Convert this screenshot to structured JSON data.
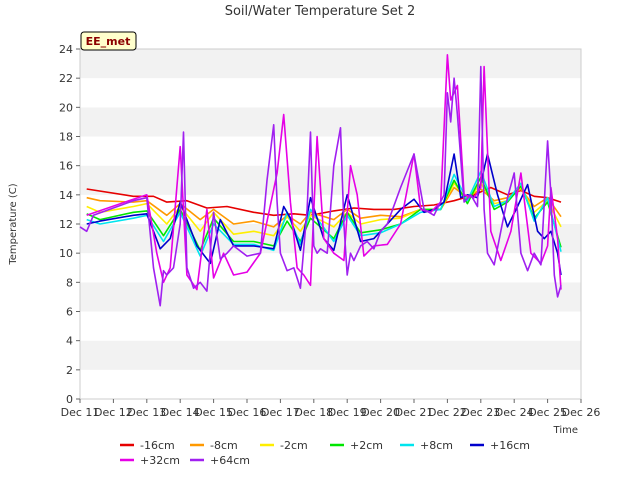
{
  "chart_data": {
    "type": "line",
    "title": "Soil/Water Temperature Set 2",
    "xlabel": "Time",
    "ylabel": "Temperature (C)",
    "badge": "EE_met",
    "x_ticks": [
      "Dec 11",
      "Dec 12",
      "Dec 13",
      "Dec 14",
      "Dec 15",
      "Dec 16",
      "Dec 17",
      "Dec 18",
      "Dec 19",
      "Dec 20",
      "Dec 21",
      "Dec 22",
      "Dec 23",
      "Dec 24",
      "Dec 25",
      "Dec 26"
    ],
    "xlim": [
      11,
      26
    ],
    "ylim": [
      0,
      24
    ],
    "y_ticks": [
      0,
      2,
      4,
      6,
      8,
      10,
      12,
      14,
      16,
      18,
      20,
      22,
      24
    ],
    "grid": "horizontal bands",
    "legend_position": "bottom",
    "series": [
      {
        "name": "-16cm",
        "color": "#e60000",
        "x": [
          11.2,
          12.6,
          13.2,
          13.6,
          14.2,
          14.8,
          15.4,
          16.2,
          16.8,
          17.4,
          17.9,
          18.6,
          19.2,
          19.8,
          20.4,
          21.0,
          21.6,
          22.2,
          22.8,
          23.3,
          23.8,
          24.2,
          24.6,
          25.0,
          25.4
        ],
        "y": [
          14.4,
          13.9,
          13.9,
          13.5,
          13.6,
          13.1,
          13.2,
          12.8,
          12.6,
          12.7,
          12.6,
          12.9,
          13.1,
          13.0,
          13.0,
          13.2,
          13.3,
          13.6,
          14.0,
          14.5,
          14.0,
          14.3,
          13.9,
          13.8,
          13.5
        ]
      },
      {
        "name": "-8cm",
        "color": "#ff9900",
        "x": [
          11.2,
          11.6,
          12.6,
          13.0,
          13.6,
          14.0,
          14.6,
          15.0,
          15.6,
          16.2,
          16.8,
          17.2,
          17.6,
          17.9,
          18.6,
          19.0,
          19.4,
          20.0,
          20.6,
          21.2,
          21.8,
          22.2,
          22.6,
          23.0,
          23.4,
          23.8,
          24.2,
          24.6,
          25.0,
          25.4
        ],
        "y": [
          13.8,
          13.6,
          13.5,
          13.6,
          12.6,
          13.4,
          12.3,
          13.0,
          12.0,
          12.2,
          11.8,
          12.6,
          12.0,
          12.8,
          12.3,
          13.0,
          12.4,
          12.6,
          12.5,
          13.0,
          13.0,
          14.5,
          13.8,
          14.4,
          13.6,
          13.8,
          14.4,
          13.2,
          13.8,
          12.5
        ]
      },
      {
        "name": "-2cm",
        "color": "#ffee00",
        "x": [
          11.2,
          11.6,
          12.6,
          13.0,
          13.6,
          14.0,
          14.6,
          15.0,
          15.6,
          16.2,
          16.8,
          17.2,
          17.6,
          17.9,
          18.6,
          19.0,
          19.4,
          20.0,
          20.6,
          21.2,
          21.8,
          22.2,
          22.6,
          23.0,
          23.4,
          23.8,
          24.2,
          24.6,
          25.0,
          25.4
        ],
        "y": [
          13.2,
          12.8,
          13.2,
          13.4,
          12.0,
          13.2,
          11.5,
          12.8,
          11.3,
          11.5,
          11.2,
          12.5,
          11.5,
          12.6,
          11.8,
          12.8,
          12.0,
          12.3,
          12.4,
          13.0,
          13.0,
          14.8,
          13.6,
          14.8,
          13.4,
          13.6,
          14.5,
          12.8,
          13.6,
          11.8
        ]
      },
      {
        "name": "+2cm",
        "color": "#00e600",
        "x": [
          11.2,
          11.6,
          12.6,
          13.0,
          13.5,
          14.0,
          14.6,
          15.0,
          15.6,
          16.2,
          16.8,
          17.2,
          17.6,
          17.9,
          18.6,
          19.0,
          19.4,
          20.0,
          20.6,
          21.2,
          21.8,
          22.2,
          22.6,
          23.0,
          23.4,
          23.8,
          24.2,
          24.6,
          25.0,
          25.4
        ],
        "y": [
          12.7,
          12.3,
          12.8,
          12.9,
          11.2,
          13.0,
          10.2,
          12.4,
          10.8,
          10.8,
          10.5,
          12.2,
          10.8,
          12.4,
          11.0,
          12.8,
          11.4,
          11.6,
          12.0,
          13.0,
          13.0,
          15.0,
          13.4,
          15.2,
          13.0,
          13.5,
          14.6,
          12.4,
          13.5,
          10.4
        ]
      },
      {
        "name": "+8cm",
        "color": "#00e5ee",
        "x": [
          11.2,
          11.6,
          12.6,
          13.0,
          13.5,
          14.0,
          14.6,
          15.0,
          15.6,
          16.2,
          16.8,
          17.2,
          17.6,
          17.9,
          18.6,
          19.0,
          19.4,
          20.0,
          20.6,
          21.2,
          21.8,
          22.2,
          22.6,
          23.0,
          23.4,
          23.8,
          24.2,
          24.6,
          25.0,
          25.4
        ],
        "y": [
          12.3,
          12.0,
          12.4,
          12.6,
          10.8,
          12.8,
          9.8,
          12.0,
          10.6,
          10.6,
          10.2,
          12.8,
          10.6,
          13.0,
          10.8,
          12.6,
          11.2,
          11.4,
          12.0,
          12.8,
          13.0,
          15.4,
          13.6,
          15.6,
          13.2,
          13.6,
          14.8,
          12.2,
          13.8,
          10.1
        ]
      },
      {
        "name": "+16cm",
        "color": "#0000cc",
        "x": [
          11.2,
          11.6,
          12.6,
          13.0,
          13.4,
          13.7,
          14.0,
          14.5,
          14.9,
          15.2,
          15.6,
          16.2,
          16.8,
          17.1,
          17.3,
          17.6,
          17.9,
          18.3,
          18.6,
          19.0,
          19.4,
          19.8,
          20.2,
          20.6,
          21.0,
          21.3,
          21.6,
          21.9,
          22.2,
          22.4,
          22.6,
          22.9,
          23.2,
          23.5,
          23.8,
          24.1,
          24.4,
          24.7,
          24.9,
          25.1,
          25.3,
          25.4
        ],
        "y": [
          12.0,
          12.2,
          12.6,
          12.7,
          10.3,
          11.0,
          13.5,
          10.5,
          9.3,
          12.3,
          10.5,
          10.5,
          10.3,
          13.2,
          12.4,
          10.2,
          13.8,
          11.0,
          10.2,
          14.0,
          10.8,
          11.0,
          12.0,
          13.0,
          13.7,
          12.8,
          13.0,
          13.5,
          16.8,
          13.8,
          14.0,
          13.8,
          16.8,
          14.0,
          11.8,
          13.2,
          14.7,
          11.5,
          11.0,
          11.5,
          10.0,
          8.5
        ]
      },
      {
        "name": "+32cm",
        "color": "#e600e6",
        "x": [
          11.2,
          12.6,
          13.0,
          13.3,
          13.5,
          13.7,
          14.0,
          14.2,
          14.5,
          14.8,
          15.0,
          15.3,
          15.6,
          16.0,
          16.4,
          16.9,
          17.1,
          17.3,
          17.5,
          17.7,
          17.9,
          18.1,
          18.3,
          18.6,
          18.9,
          19.1,
          19.3,
          19.5,
          19.8,
          20.2,
          20.6,
          21.0,
          21.2,
          21.5,
          21.8,
          22.0,
          22.1,
          22.3,
          22.5,
          22.8,
          23.0,
          23.1,
          23.3,
          23.6,
          23.9,
          24.2,
          24.5,
          24.8,
          25.0,
          25.1,
          25.3,
          25.4
        ],
        "y": [
          12.6,
          13.7,
          14.0,
          10.0,
          8.0,
          9.0,
          17.3,
          8.5,
          7.5,
          13.0,
          8.3,
          10.0,
          8.5,
          8.7,
          10.0,
          15.5,
          19.5,
          13.5,
          9.0,
          8.5,
          7.8,
          18.0,
          11.0,
          10.0,
          9.5,
          16.0,
          14.0,
          9.8,
          10.5,
          10.6,
          12.0,
          16.8,
          13.0,
          12.8,
          13.5,
          23.6,
          20.5,
          21.5,
          14.0,
          13.8,
          14.5,
          22.8,
          11.5,
          9.5,
          11.5,
          15.5,
          10.0,
          9.3,
          10.5,
          14.5,
          11.0,
          7.5
        ]
      },
      {
        "name": "+64cm",
        "color": "#a020f0",
        "x": [
          11.0,
          11.2,
          11.4,
          12.6,
          13.0,
          13.2,
          13.4,
          13.5,
          13.6,
          13.8,
          14.0,
          14.1,
          14.2,
          14.4,
          14.6,
          14.8,
          15.0,
          15.2,
          15.4,
          15.6,
          16.0,
          16.4,
          16.6,
          16.8,
          16.9,
          17.0,
          17.2,
          17.4,
          17.6,
          17.8,
          17.9,
          18.0,
          18.1,
          18.2,
          18.4,
          18.6,
          18.8,
          18.9,
          19.0,
          19.1,
          19.2,
          19.4,
          19.6,
          19.8,
          20.0,
          20.2,
          20.6,
          21.0,
          21.3,
          21.6,
          21.9,
          22.0,
          22.1,
          22.2,
          22.3,
          22.5,
          22.7,
          22.9,
          23.0,
          23.1,
          23.2,
          23.4,
          23.6,
          23.8,
          24.0,
          24.2,
          24.4,
          24.6,
          24.8,
          25.0,
          25.1,
          25.2,
          25.3,
          25.4
        ],
        "y": [
          11.8,
          11.5,
          12.6,
          13.6,
          13.8,
          9.0,
          6.4,
          8.8,
          8.5,
          9.0,
          12.0,
          18.3,
          9.0,
          7.6,
          8.0,
          7.4,
          12.8,
          9.6,
          10.0,
          10.5,
          9.8,
          10.0,
          15.0,
          18.8,
          13.5,
          10.0,
          8.8,
          9.0,
          7.6,
          13.0,
          18.3,
          10.5,
          10.0,
          10.3,
          10.0,
          16.0,
          18.6,
          12.0,
          8.5,
          10.0,
          9.5,
          10.5,
          10.8,
          10.3,
          11.5,
          12.0,
          14.5,
          16.8,
          13.0,
          12.6,
          14.0,
          21.0,
          19.0,
          22.0,
          19.5,
          13.5,
          14.0,
          13.2,
          22.8,
          13.0,
          10.0,
          9.2,
          11.5,
          13.8,
          15.5,
          10.0,
          8.8,
          10.0,
          9.2,
          17.7,
          14.0,
          8.5,
          7.0,
          7.8
        ]
      }
    ]
  }
}
